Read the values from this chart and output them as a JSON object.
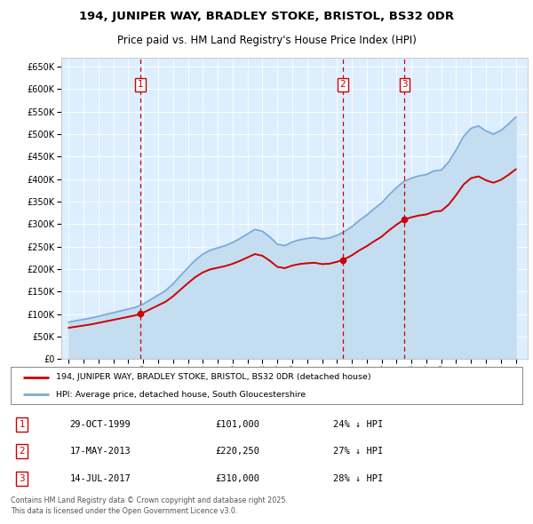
{
  "title_line1": "194, JUNIPER WAY, BRADLEY STOKE, BRISTOL, BS32 0DR",
  "title_line2": "Price paid vs. HM Land Registry's House Price Index (HPI)",
  "bg_color": "#ddeeff",
  "sale_color": "#cc0000",
  "hpi_color": "#7aabdb",
  "hpi_fill_color": "#c5ddf0",
  "sale_dates_num": [
    1999.83,
    2013.38,
    2017.54
  ],
  "sale_prices": [
    101000,
    220250,
    310000
  ],
  "annotations": [
    {
      "n": "1",
      "date_str": "29-OCT-1999",
      "price_str": "£101,000",
      "pct_str": "24% ↓ HPI"
    },
    {
      "n": "2",
      "date_str": "17-MAY-2013",
      "price_str": "£220,250",
      "pct_str": "27% ↓ HPI"
    },
    {
      "n": "3",
      "date_str": "14-JUL-2017",
      "price_str": "£310,000",
      "pct_str": "28% ↓ HPI"
    }
  ],
  "legend_sale_label": "194, JUNIPER WAY, BRADLEY STOKE, BRISTOL, BS32 0DR (detached house)",
  "legend_hpi_label": "HPI: Average price, detached house, South Gloucestershire",
  "footer": "Contains HM Land Registry data © Crown copyright and database right 2025.\nThis data is licensed under the Open Government Licence v3.0.",
  "ylim_max": 670000,
  "xlim_start": 1994.5,
  "xlim_end": 2025.8,
  "yticks": [
    0,
    50000,
    100000,
    150000,
    200000,
    250000,
    300000,
    350000,
    400000,
    450000,
    500000,
    550000,
    600000,
    650000
  ]
}
